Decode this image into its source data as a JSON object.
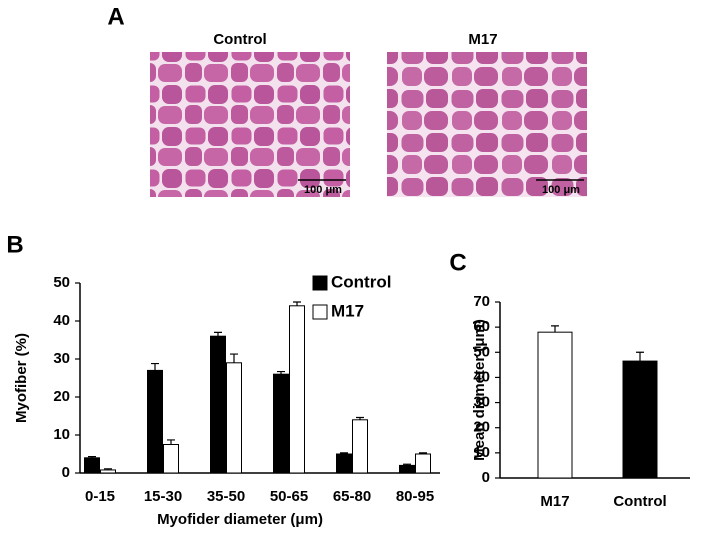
{
  "figure": {
    "panel_a": {
      "label": "A",
      "images": [
        {
          "title": "Control",
          "scale_bar": "100 μm"
        },
        {
          "title": "M17",
          "scale_bar": "100 μm"
        }
      ]
    }
  },
  "chart_data": [
    {
      "type": "bar",
      "panel_label": "B",
      "categories": [
        "0-15",
        "15-30",
        "35-50",
        "50-65",
        "65-80",
        "80-95"
      ],
      "series": [
        {
          "name": "Control",
          "color": "#000000",
          "values": [
            4,
            27,
            36,
            26,
            5,
            2
          ],
          "errors": [
            0.3,
            1.8,
            1,
            0.7,
            0.3,
            0.3
          ]
        },
        {
          "name": "M17",
          "color": "#ffffff",
          "values": [
            0.8,
            7.5,
            29,
            44,
            14,
            5
          ],
          "errors": [
            0.3,
            1.2,
            2.3,
            1,
            0.6,
            0.3
          ]
        }
      ],
      "ylim": [
        0,
        50
      ],
      "yticks": [
        0,
        10,
        20,
        30,
        40,
        50
      ],
      "ylabel": "Myofiber (%)",
      "xlabel": "Myofider diameter (μm)",
      "legend": "top-right"
    },
    {
      "type": "bar",
      "panel_label": "C",
      "categories": [
        "M17",
        "Control"
      ],
      "values": [
        58,
        46.5
      ],
      "errors": [
        2.5,
        3.5
      ],
      "colors": [
        "#ffffff",
        "#000000"
      ],
      "ylim": [
        0,
        70
      ],
      "yticks": [
        0,
        10,
        20,
        30,
        40,
        50,
        60,
        70
      ],
      "ylabel": "Mean diameter (μm)"
    }
  ]
}
